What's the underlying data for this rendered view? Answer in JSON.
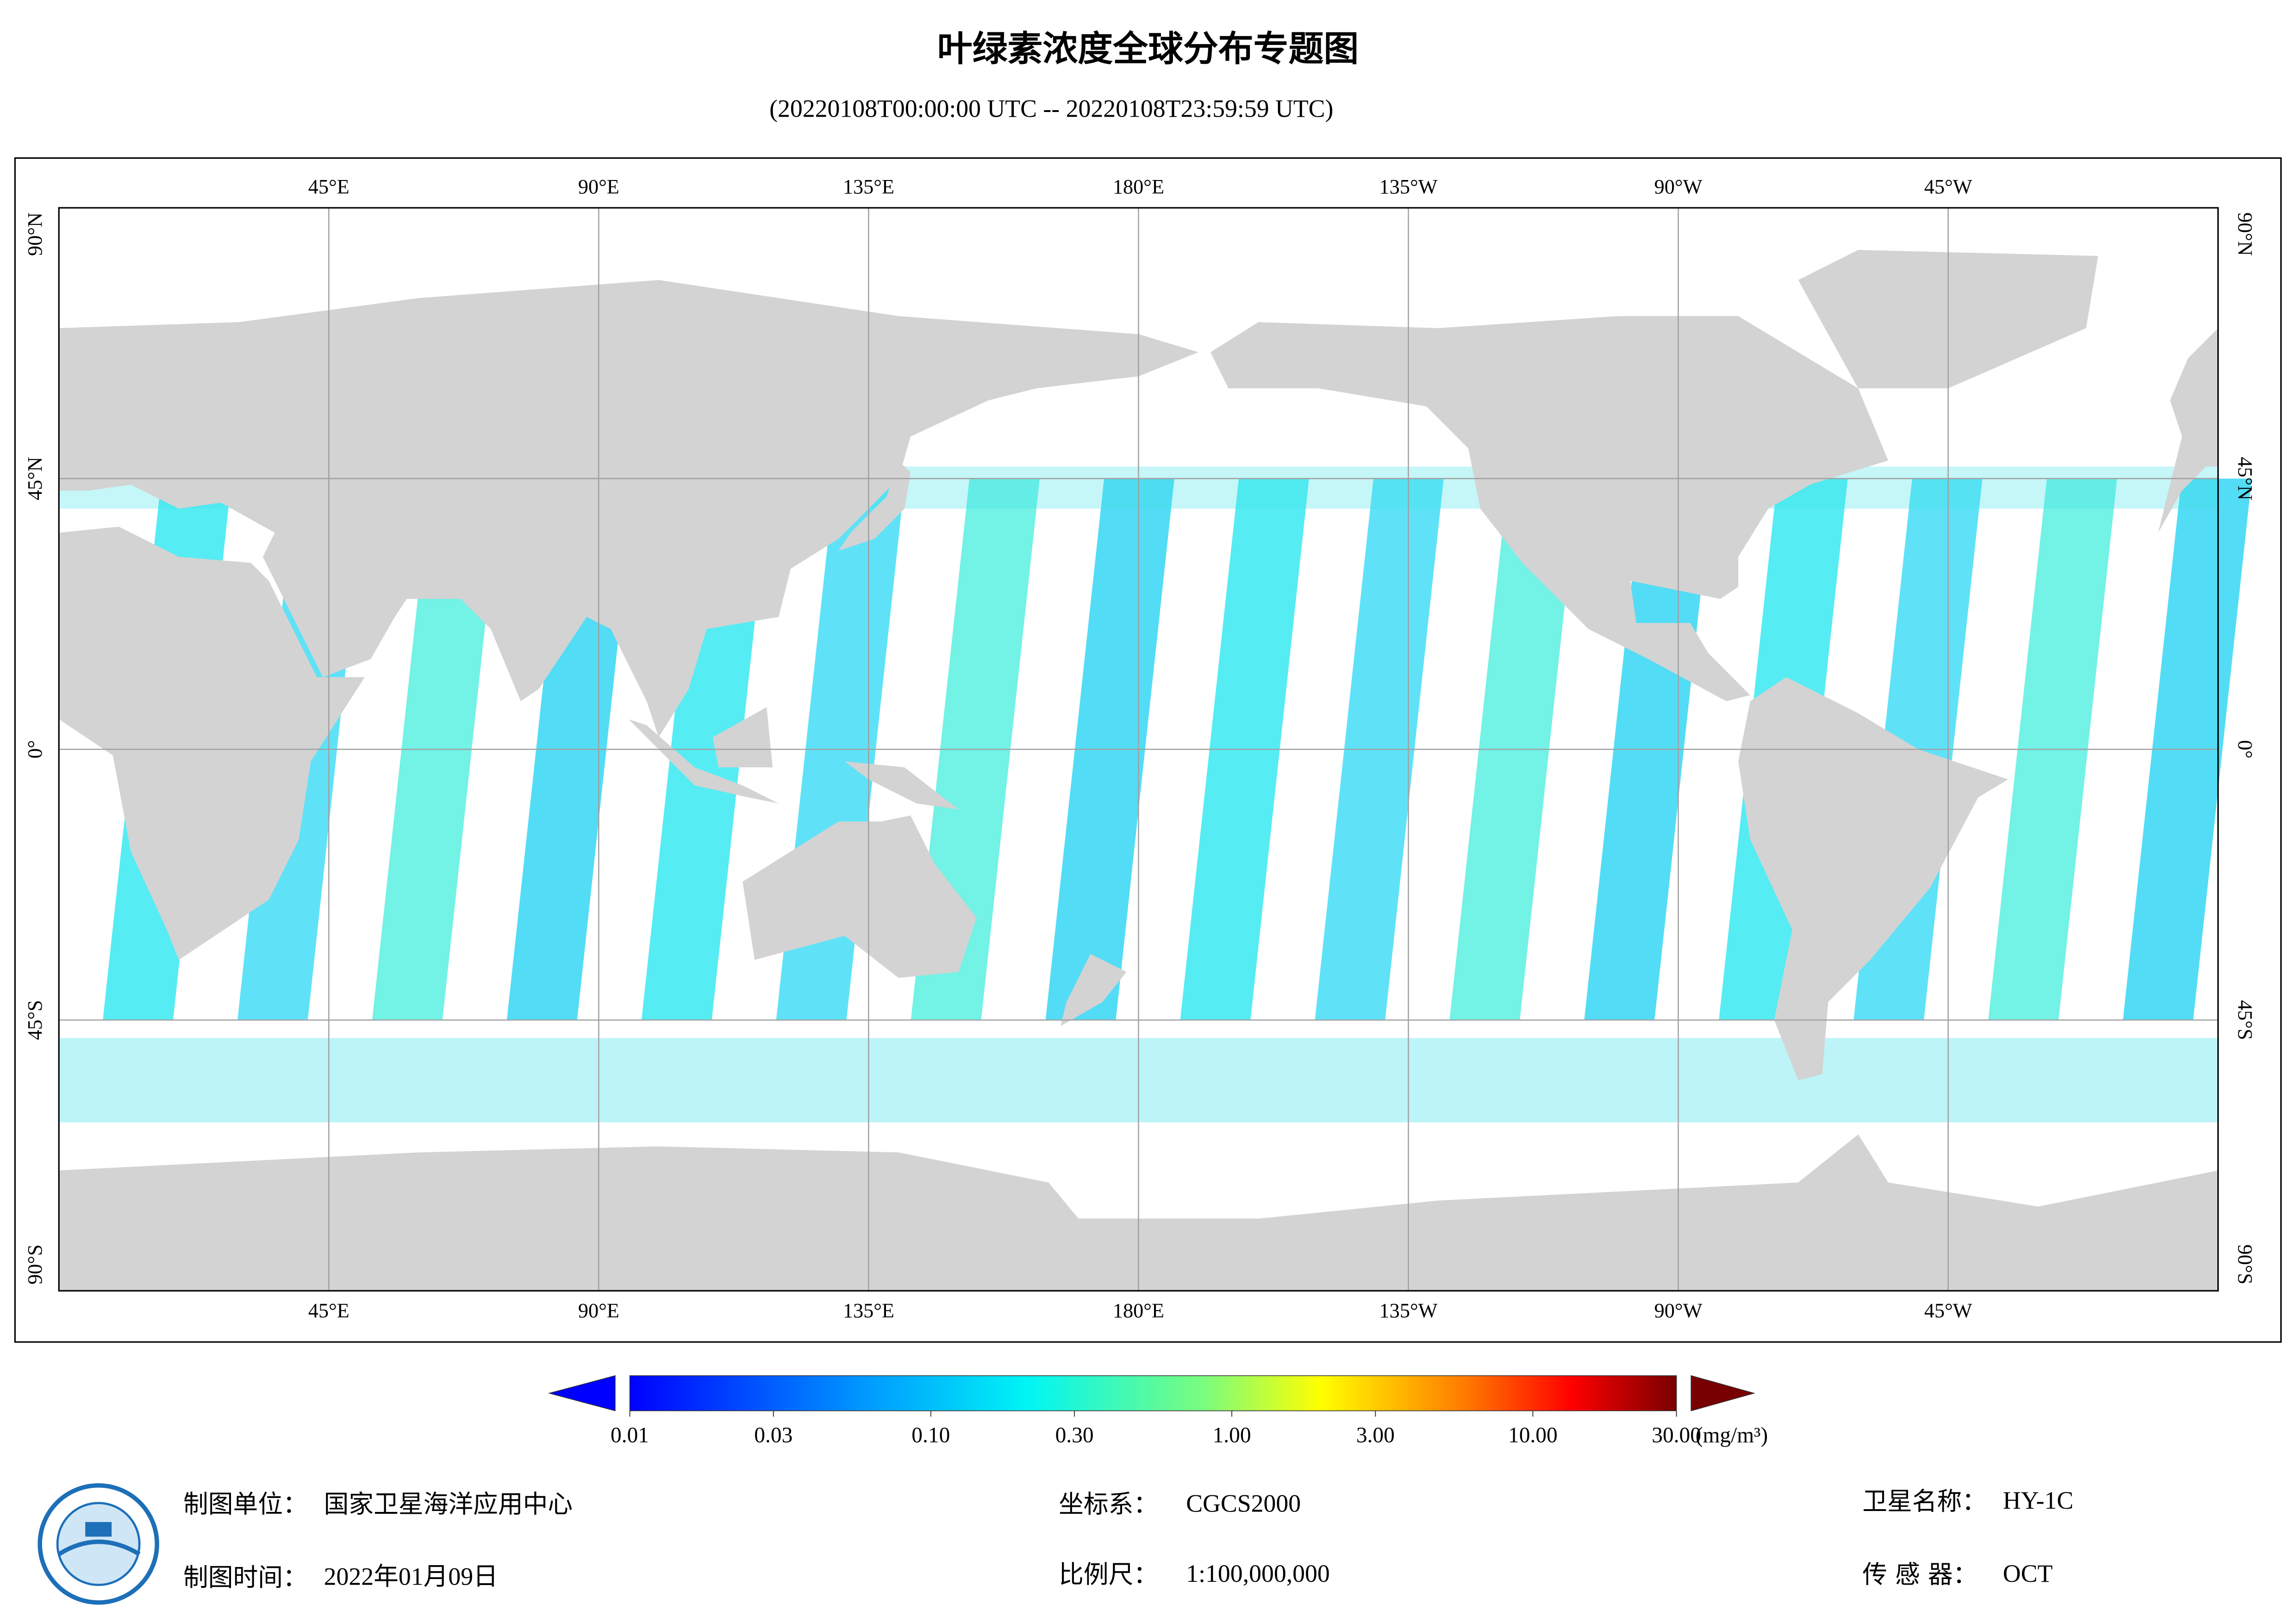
{
  "title": "叶绿素浓度全球分布专题图",
  "subtitle": "(20220108T00:00:00 UTC -- 20220108T23:59:59 UTC)",
  "map": {
    "lon_ticks": [
      {
        "value": 45,
        "label": "45°E"
      },
      {
        "value": 90,
        "label": "90°E"
      },
      {
        "value": 135,
        "label": "135°E"
      },
      {
        "value": 180,
        "label": "180°E"
      },
      {
        "value": -135,
        "label": "135°W"
      },
      {
        "value": -90,
        "label": "90°W"
      },
      {
        "value": -45,
        "label": "45°W"
      }
    ],
    "lat_ticks": [
      {
        "value": 90,
        "label": "90°N"
      },
      {
        "value": 45,
        "label": "45°N"
      },
      {
        "value": 0,
        "label": "0°"
      },
      {
        "value": -45,
        "label": "45°S"
      },
      {
        "value": -90,
        "label": "90°S"
      }
    ]
  },
  "colorbar": {
    "range": [
      0.01,
      30
    ],
    "ticks": [
      {
        "value": 0.01,
        "label": "0.01"
      },
      {
        "value": 0.03,
        "label": "0.03"
      },
      {
        "value": 0.1,
        "label": "0.10"
      },
      {
        "value": 0.3,
        "label": "0.30"
      },
      {
        "value": 1,
        "label": "1.00"
      },
      {
        "value": 3,
        "label": "3.00"
      },
      {
        "value": 10,
        "label": "10.00"
      },
      {
        "value": 30,
        "label": "30.00"
      }
    ],
    "unit": "(mg/m³)"
  },
  "footer": {
    "unit": {
      "label": "制图单位：",
      "value": "国家卫星海洋应用中心"
    },
    "date": {
      "label": "制图时间：",
      "value": "2022年01月09日"
    },
    "crs": {
      "label": "坐标系：",
      "value": "CGCS2000"
    },
    "scale": {
      "label": "比例尺：",
      "value": "1:100,000,000"
    },
    "satellite": {
      "label": "卫星名称：",
      "value": "HY-1C"
    },
    "sensor": {
      "label": "传 感 器：",
      "value": "OCT"
    }
  }
}
